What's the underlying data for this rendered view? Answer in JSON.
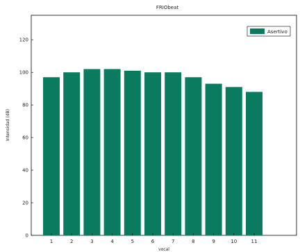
{
  "chart_data": {
    "type": "bar",
    "title": "FRIObeat",
    "xlabel": "vocal",
    "ylabel": "Intensidad (dB)",
    "categories": [
      "1",
      "2",
      "3",
      "4",
      "5",
      "6",
      "7",
      "8",
      "9",
      "10",
      "11"
    ],
    "series": [
      {
        "name": "Asertivo",
        "values": [
          97,
          100,
          102,
          102,
          101,
          100,
          100,
          97,
          93,
          91,
          88
        ],
        "color": "#0a7b5e"
      }
    ],
    "ylim": [
      0,
      135
    ],
    "yticks": [
      0,
      20,
      40,
      60,
      80,
      100,
      120
    ],
    "grid": false,
    "legend_position": "top-right"
  }
}
